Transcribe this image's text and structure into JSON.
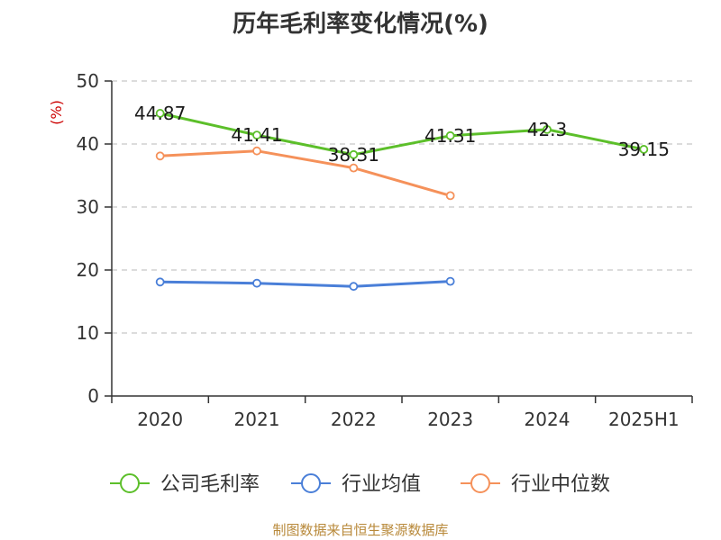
{
  "title": "历年毛利率变化情况(%)",
  "footer": "制图数据来自恒生聚源数据库",
  "chart_data": {
    "type": "line",
    "title": "历年毛利率变化情况(%)",
    "ylabel": "(%)",
    "xlabel": "",
    "ylim": [
      0,
      50
    ],
    "yticks": [
      0,
      10,
      20,
      30,
      40,
      50
    ],
    "grid": true,
    "legend_position": "bottom",
    "categories": [
      "2020",
      "2021",
      "2022",
      "2023",
      "2024",
      "2025H1"
    ],
    "series": [
      {
        "name": "公司毛利率",
        "color": "#5cbf2a",
        "values": [
          44.87,
          41.41,
          38.31,
          41.31,
          42.3,
          39.15
        ],
        "labels": [
          "44.87",
          "41.41",
          "38.31",
          "41.31",
          "42.3",
          "39.15"
        ]
      },
      {
        "name": "行业均值",
        "color": "#4a7fd8",
        "values": [
          18.1,
          17.9,
          17.4,
          18.2,
          null,
          null
        ]
      },
      {
        "name": "行业中位数",
        "color": "#f5915a",
        "values": [
          38.1,
          38.9,
          36.2,
          31.8,
          null,
          null
        ]
      }
    ]
  }
}
